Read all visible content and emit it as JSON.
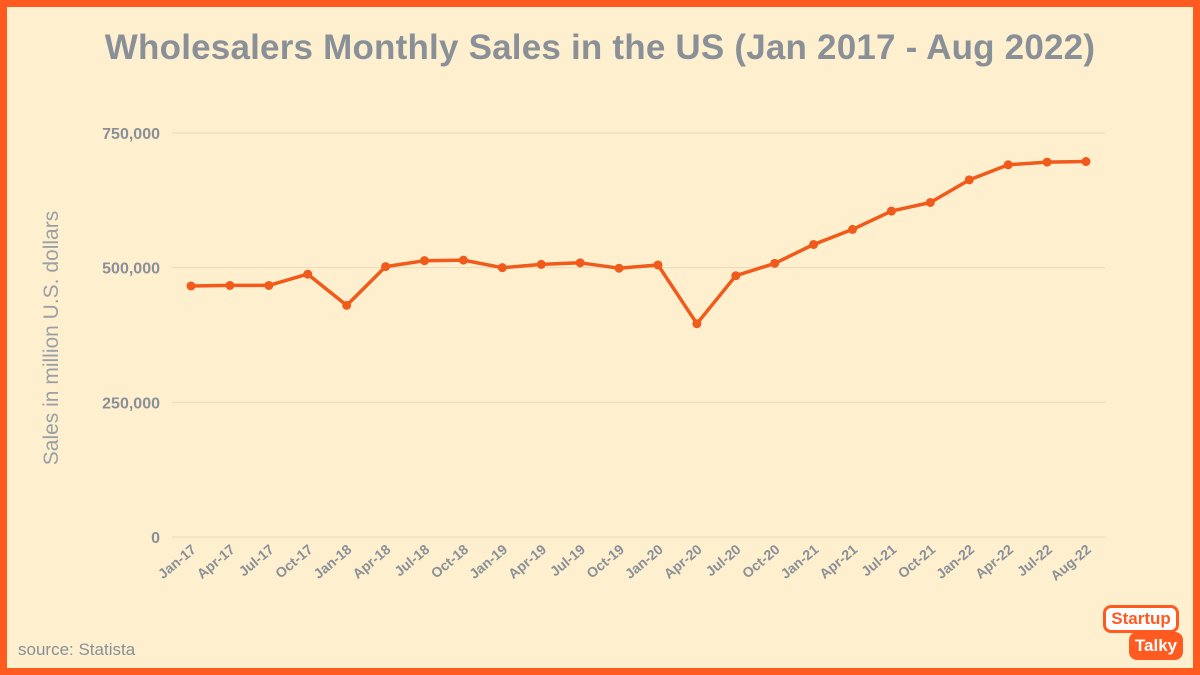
{
  "chart_data": {
    "type": "line",
    "title": "Wholesalers Monthly Sales in the US (Jan 2017 - Aug 2022)",
    "xlabel": "",
    "ylabel": "Sales in million U.S. dollars",
    "ylim": [
      0,
      750000
    ],
    "yticks": [
      0,
      250000,
      500000,
      750000
    ],
    "ytick_labels": [
      "0",
      "250,000",
      "500,000",
      "750,000"
    ],
    "grid": true,
    "categories": [
      "Jan-17",
      "Apr-17",
      "Jul-17",
      "Oct-17",
      "Jan-18",
      "Apr-18",
      "Jul-18",
      "Oct-18",
      "Jan-19",
      "Apr-19",
      "Jul-19",
      "Oct-19",
      "Jan-20",
      "Apr-20",
      "Jul-20",
      "Oct-20",
      "Jan-21",
      "Apr-21",
      "Jul-21",
      "Oct-21",
      "Jan-22",
      "Apr-22",
      "Jul-22",
      "Aug-22"
    ],
    "series": [
      {
        "name": "Wholesalers monthly sales",
        "color": "#f05a1a",
        "values": [
          466000,
          467000,
          467000,
          488000,
          430000,
          502000,
          513000,
          514000,
          500000,
          506000,
          509000,
          499000,
          505000,
          396000,
          485000,
          508000,
          543000,
          571000,
          605000,
          621000,
          663000,
          691000,
          696000,
          697000
        ]
      }
    ]
  },
  "source": "source: Statista",
  "logo": {
    "line1": "Startup",
    "line2": "Talky"
  },
  "colors": {
    "background": "#feefcf",
    "border": "#ff5a1f",
    "line": "#f05a1a",
    "grid": "#ead9b8",
    "text": "#8a9097"
  }
}
